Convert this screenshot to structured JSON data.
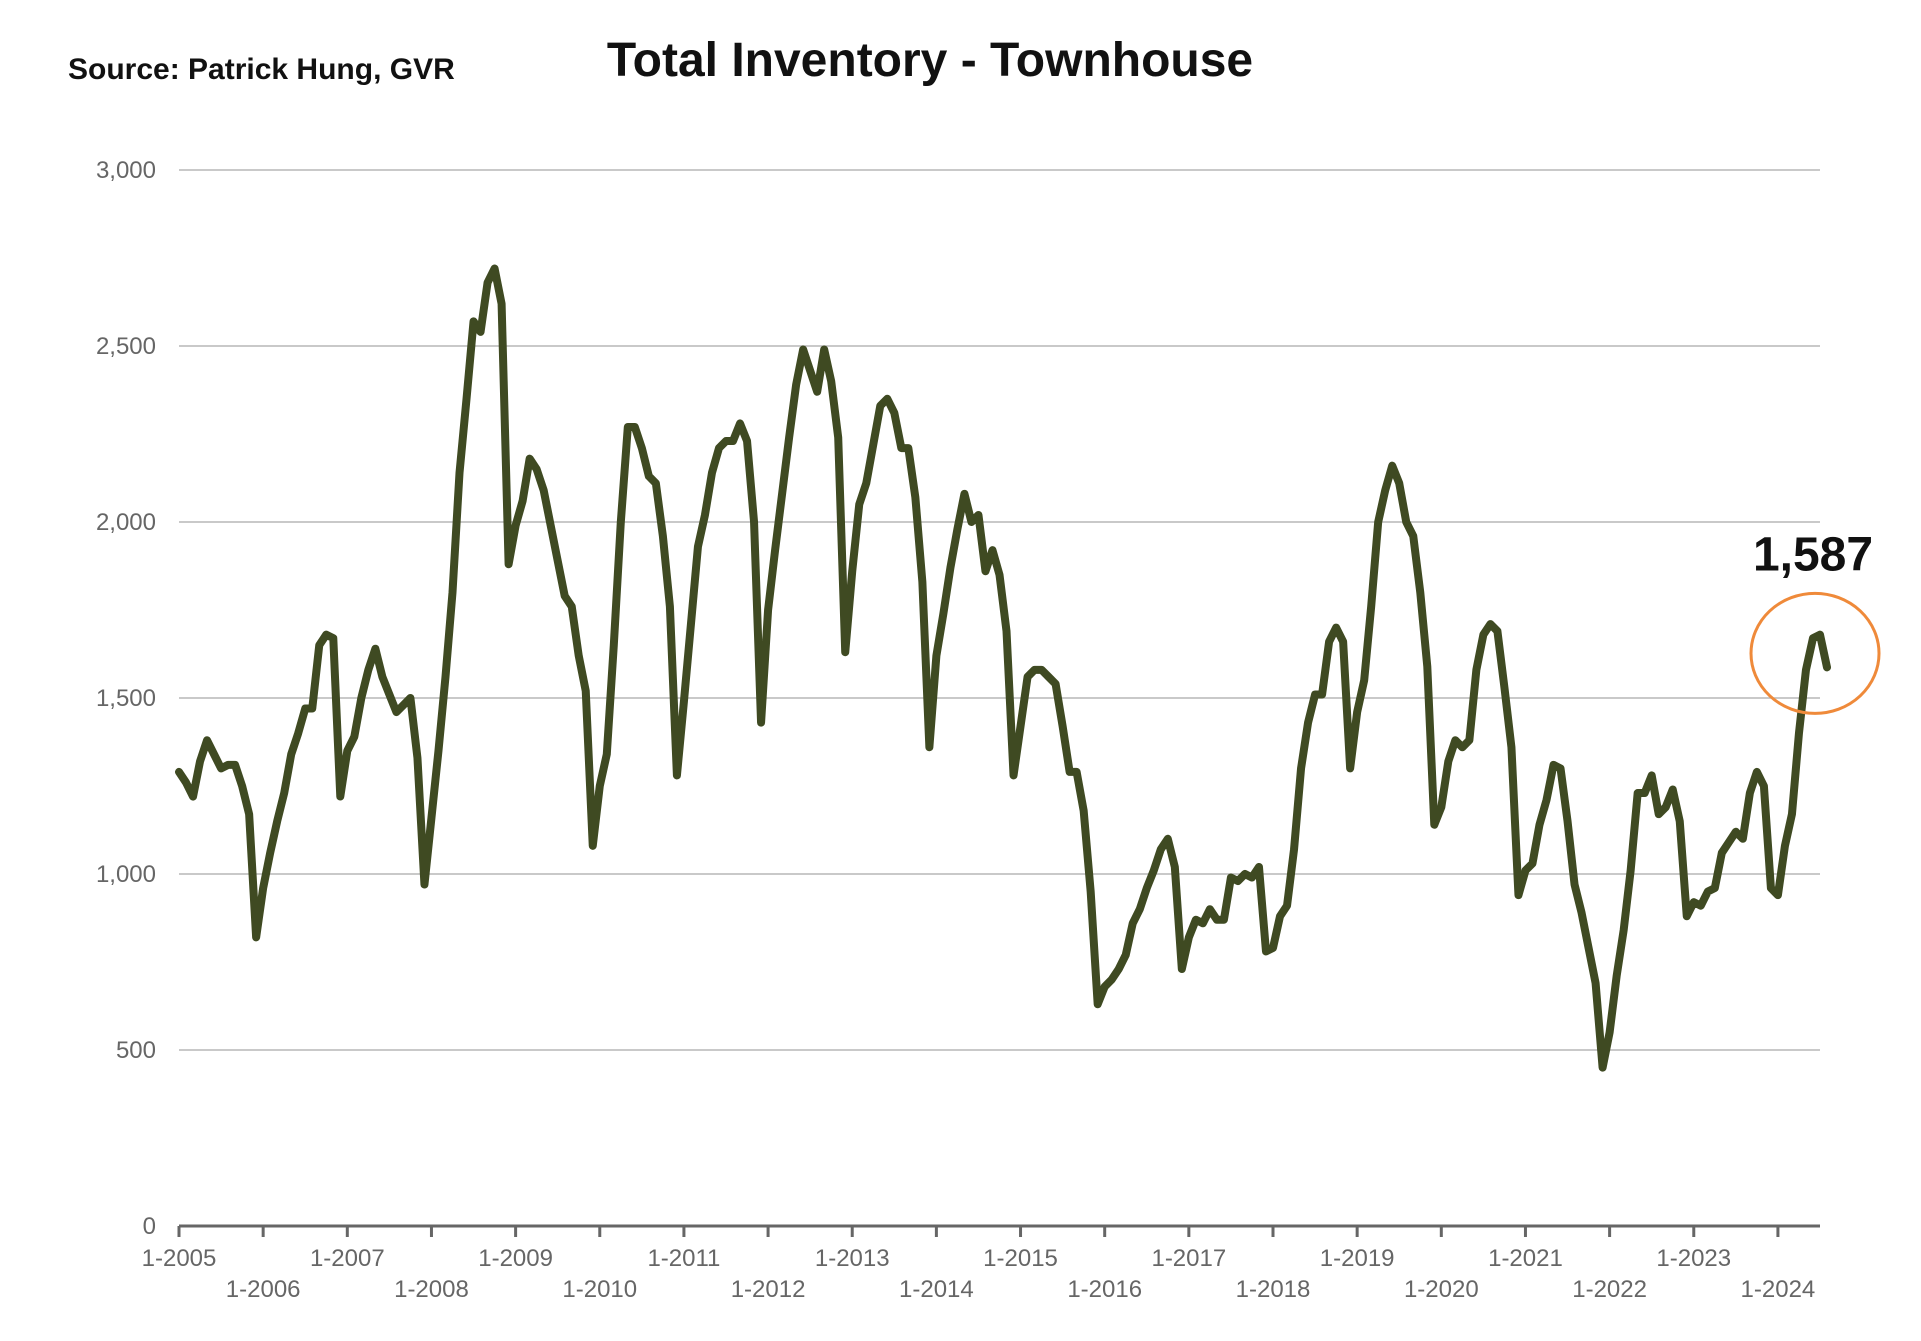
{
  "source_text": "Source:  Patrick Hung, GVR",
  "chart_data": {
    "type": "line",
    "title": "Total Inventory - Townhouse",
    "xlabel": "",
    "ylabel": "",
    "ylim": [
      0,
      3000
    ],
    "y_ticks": [
      "0",
      "500",
      "1,000",
      "1,500",
      "2,000",
      "2,500",
      "3,000"
    ],
    "x_ticks": [
      "1-2005",
      "1-2006",
      "1-2007",
      "1-2008",
      "1-2009",
      "1-2010",
      "1-2011",
      "1-2012",
      "1-2013",
      "1-2014",
      "1-2015",
      "1-2016",
      "1-2017",
      "1-2018",
      "1-2019",
      "1-2020",
      "1-2021",
      "1-2022",
      "1-2023",
      "1-2024"
    ],
    "grid": true,
    "line_color": "#3f4a22",
    "callout": {
      "label": "1,587",
      "color": "#ef8a3a"
    },
    "series": [
      {
        "start": "2005-01",
        "frequency": "monthly",
        "values": [
          1290,
          1260,
          1220,
          1320,
          1380,
          1340,
          1300,
          1310,
          1310,
          1250,
          1170,
          820,
          960,
          1060,
          1150,
          1230,
          1340,
          1400,
          1470,
          1470,
          1650,
          1680,
          1670,
          1220,
          1350,
          1390,
          1500,
          1580,
          1640,
          1560,
          1510,
          1460,
          1480,
          1500,
          1330,
          970,
          1160,
          1350,
          1560,
          1800,
          2140,
          2350,
          2570,
          2540,
          2680,
          2720,
          2620,
          1880,
          1990,
          2060,
          2180,
          2150,
          2090,
          1990,
          1890,
          1790,
          1760,
          1620,
          1520,
          1080,
          1250,
          1340,
          1650,
          2000,
          2270,
          2270,
          2210,
          2130,
          2110,
          1960,
          1760,
          1280,
          1490,
          1710,
          1930,
          2020,
          2140,
          2210,
          2230,
          2230,
          2280,
          2230,
          2000,
          1430,
          1750,
          1920,
          2080,
          2240,
          2390,
          2490,
          2430,
          2370,
          2490,
          2400,
          2240,
          1630,
          1860,
          2050,
          2110,
          2220,
          2330,
          2350,
          2310,
          2210,
          2210,
          2070,
          1830,
          1360,
          1620,
          1740,
          1870,
          1980,
          2080,
          2000,
          2020,
          1860,
          1920,
          1850,
          1690,
          1280,
          1420,
          1560,
          1580,
          1580,
          1560,
          1540,
          1420,
          1290,
          1290,
          1180,
          950,
          630,
          680,
          700,
          730,
          770,
          860,
          900,
          960,
          1010,
          1070,
          1100,
          1020,
          730,
          820,
          870,
          860,
          900,
          870,
          870,
          990,
          980,
          1000,
          990,
          1020,
          780,
          790,
          880,
          910,
          1070,
          1300,
          1430,
          1510,
          1510,
          1660,
          1700,
          1660,
          1300,
          1460,
          1550,
          1760,
          2000,
          2090,
          2160,
          2110,
          2000,
          1960,
          1800,
          1590,
          1140,
          1190,
          1320,
          1380,
          1360,
          1380,
          1580,
          1680,
          1710,
          1690,
          1530,
          1360,
          940,
          1010,
          1030,
          1140,
          1210,
          1310,
          1300,
          1150,
          970,
          890,
          790,
          690,
          450,
          550,
          710,
          840,
          1010,
          1230,
          1230,
          1280,
          1170,
          1190,
          1240,
          1150,
          880,
          920,
          910,
          950,
          960,
          1060,
          1090,
          1120,
          1100,
          1230,
          1290,
          1250,
          960,
          940,
          1080,
          1170,
          1400,
          1580,
          1670,
          1680,
          1587
        ]
      }
    ]
  }
}
